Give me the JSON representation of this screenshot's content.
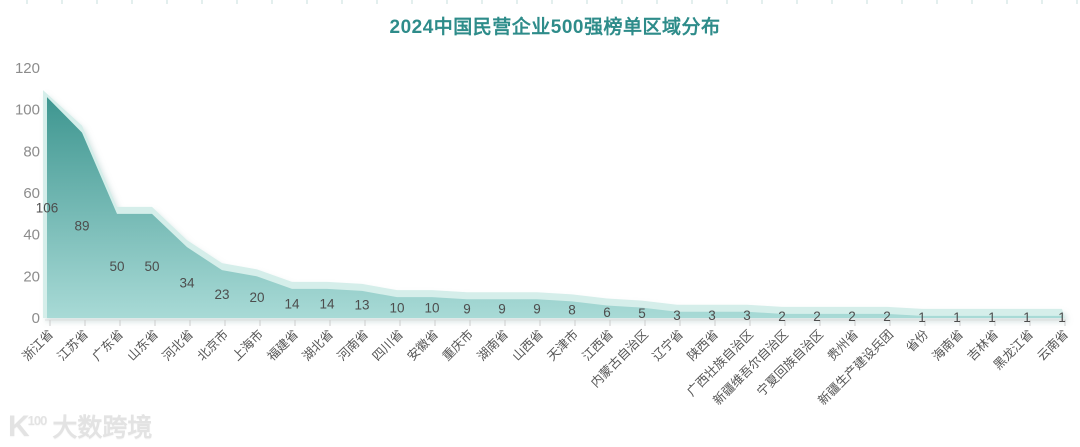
{
  "title": "2024中国民营企业500强榜单区域分布",
  "colors": {
    "title": "#2E8C8A",
    "area_top": "#3E9690",
    "area_bottom": "#A8DAD6",
    "halo": "#D5EEEA",
    "halo_shadow": "#9fbdbb",
    "axis_line": "#DDDDDD",
    "tick": "#CCCCCC",
    "y_label": "#8C8C8C",
    "data_label": "#4D4D4D",
    "category_label": "#555555"
  },
  "chart_data": {
    "type": "area",
    "title": "2024中国民营企业500强榜单区域分布",
    "categories": [
      "浙江省",
      "江苏省",
      "广东省",
      "山东省",
      "河北省",
      "北京市",
      "上海市",
      "福建省",
      "湖北省",
      "河南省",
      "四川省",
      "安徽省",
      "重庆市",
      "湖南省",
      "山西省",
      "天津市",
      "江西省",
      "内蒙古自治区",
      "辽宁省",
      "陕西省",
      "广西壮族自治区",
      "新疆维吾尔自治区",
      "宁夏回族自治区",
      "贵州省",
      "新疆生产建设兵团",
      "省份",
      "海南省",
      "吉林省",
      "黑龙江省",
      "云南省"
    ],
    "values": [
      106,
      89,
      50,
      50,
      34,
      23,
      20,
      14,
      14,
      13,
      10,
      10,
      9,
      9,
      9,
      8,
      6,
      5,
      3,
      3,
      3,
      2,
      2,
      2,
      2,
      1,
      1,
      1,
      1,
      1
    ],
    "y_ticks": [
      0,
      20,
      40,
      60,
      80,
      100,
      120
    ],
    "ylim": [
      0,
      120
    ],
    "xlabel": "",
    "ylabel": "",
    "grid": "off",
    "legend": "none",
    "data_labels": "inside-middle",
    "x_label_rotation": 45
  },
  "watermark": {
    "logo_icon": "k100-logo-icon",
    "logo": "K",
    "logo_sup": "100",
    "text": "大数跨境"
  }
}
